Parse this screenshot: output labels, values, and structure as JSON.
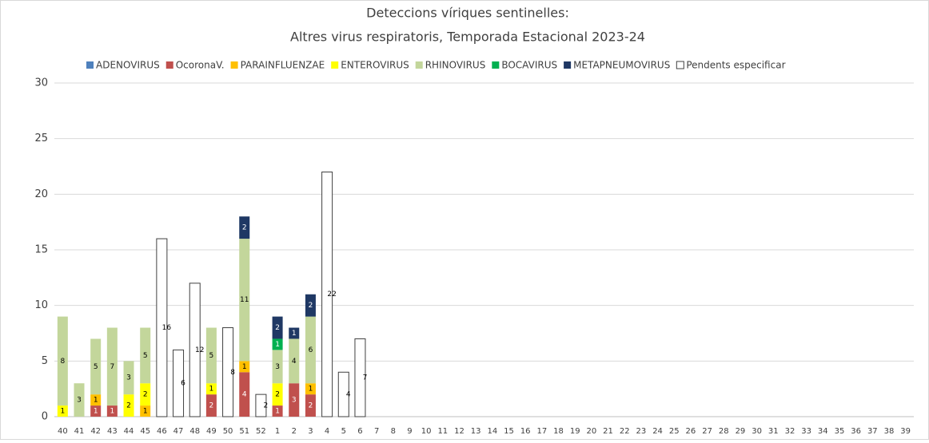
{
  "chart_data": {
    "type": "stacked_bar",
    "title": "Deteccions víriques sentinelles:",
    "subtitle": "Altres virus respiratoris,  Temporada Estacional 2023-24",
    "categories": [
      "40",
      "41",
      "42",
      "43",
      "44",
      "45",
      "46",
      "47",
      "48",
      "49",
      "50",
      "51",
      "52",
      "1",
      "2",
      "3",
      "4",
      "5",
      "6",
      "7",
      "8",
      "9",
      "10",
      "11",
      "12",
      "13",
      "14",
      "15",
      "16",
      "17",
      "18",
      "19",
      "20",
      "21",
      "22",
      "23",
      "24",
      "25",
      "26",
      "27",
      "28",
      "29",
      "30",
      "31",
      "32",
      "33",
      "34",
      "35",
      "36",
      "37",
      "38",
      "39"
    ],
    "series": [
      {
        "name": "ADENOVIRUS",
        "color": "#4f81bd",
        "values": [
          0,
          0,
          0,
          0,
          0,
          0,
          0,
          0,
          0,
          0,
          0,
          0,
          0,
          0,
          0,
          0,
          0,
          0,
          0,
          0,
          0,
          0,
          0,
          0,
          0,
          0,
          0,
          0,
          0,
          0,
          0,
          0,
          0,
          0,
          0,
          0,
          0,
          0,
          0,
          0,
          0,
          0,
          0,
          0,
          0,
          0,
          0,
          0,
          0,
          0,
          0,
          0
        ]
      },
      {
        "name": "OcoronaV.",
        "color": "#c0504d",
        "values": [
          0,
          0,
          1,
          1,
          0,
          0,
          0,
          0,
          0,
          2,
          0,
          4,
          0,
          1,
          3,
          2,
          0,
          0,
          0,
          0,
          0,
          0,
          0,
          0,
          0,
          0,
          0,
          0,
          0,
          0,
          0,
          0,
          0,
          0,
          0,
          0,
          0,
          0,
          0,
          0,
          0,
          0,
          0,
          0,
          0,
          0,
          0,
          0,
          0,
          0,
          0,
          0
        ]
      },
      {
        "name": "PARAINFLUENZAE",
        "color": "#ffc000",
        "values": [
          0,
          0,
          1,
          0,
          0,
          1,
          0,
          0,
          0,
          0,
          0,
          1,
          0,
          0,
          0,
          1,
          0,
          0,
          0,
          0,
          0,
          0,
          0,
          0,
          0,
          0,
          0,
          0,
          0,
          0,
          0,
          0,
          0,
          0,
          0,
          0,
          0,
          0,
          0,
          0,
          0,
          0,
          0,
          0,
          0,
          0,
          0,
          0,
          0,
          0,
          0,
          0
        ]
      },
      {
        "name": "ENTEROVIRUS",
        "color": "#ffff00",
        "values": [
          1,
          0,
          0,
          0,
          2,
          2,
          0,
          0,
          0,
          1,
          0,
          0,
          0,
          2,
          0,
          0,
          0,
          0,
          0,
          0,
          0,
          0,
          0,
          0,
          0,
          0,
          0,
          0,
          0,
          0,
          0,
          0,
          0,
          0,
          0,
          0,
          0,
          0,
          0,
          0,
          0,
          0,
          0,
          0,
          0,
          0,
          0,
          0,
          0,
          0,
          0,
          0
        ]
      },
      {
        "name": "RHINOVIRUS",
        "color": "#c3d69b",
        "values": [
          8,
          3,
          5,
          7,
          3,
          5,
          0,
          0,
          0,
          5,
          0,
          11,
          0,
          3,
          4,
          6,
          0,
          0,
          0,
          0,
          0,
          0,
          0,
          0,
          0,
          0,
          0,
          0,
          0,
          0,
          0,
          0,
          0,
          0,
          0,
          0,
          0,
          0,
          0,
          0,
          0,
          0,
          0,
          0,
          0,
          0,
          0,
          0,
          0,
          0,
          0,
          0
        ]
      },
      {
        "name": "BOCAVIRUS",
        "color": "#00b050",
        "values": [
          0,
          0,
          0,
          0,
          0,
          0,
          0,
          0,
          0,
          0,
          0,
          0,
          0,
          1,
          0,
          0,
          0,
          0,
          0,
          0,
          0,
          0,
          0,
          0,
          0,
          0,
          0,
          0,
          0,
          0,
          0,
          0,
          0,
          0,
          0,
          0,
          0,
          0,
          0,
          0,
          0,
          0,
          0,
          0,
          0,
          0,
          0,
          0,
          0,
          0,
          0,
          0
        ]
      },
      {
        "name": "METAPNEUMOVIRUS",
        "color": "#1f3864",
        "values": [
          0,
          0,
          0,
          0,
          0,
          0,
          0,
          0,
          0,
          0,
          0,
          2,
          0,
          2,
          1,
          2,
          0,
          0,
          0,
          0,
          0,
          0,
          0,
          0,
          0,
          0,
          0,
          0,
          0,
          0,
          0,
          0,
          0,
          0,
          0,
          0,
          0,
          0,
          0,
          0,
          0,
          0,
          0,
          0,
          0,
          0,
          0,
          0,
          0,
          0,
          0,
          0
        ]
      },
      {
        "name": "Pendents especificar",
        "color": "#ffffff",
        "values": [
          0,
          0,
          0,
          0,
          0,
          0,
          16,
          6,
          12,
          0,
          8,
          0,
          2,
          0,
          0,
          0,
          22,
          4,
          7,
          0,
          0,
          0,
          0,
          0,
          0,
          0,
          0,
          0,
          0,
          0,
          0,
          0,
          0,
          0,
          0,
          0,
          0,
          0,
          0,
          0,
          0,
          0,
          0,
          0,
          0,
          0,
          0,
          0,
          0,
          0,
          0,
          0
        ]
      }
    ],
    "ylim": [
      0,
      30
    ],
    "yticks": [
      0,
      5,
      10,
      15,
      20,
      25,
      30
    ],
    "grid": true
  }
}
